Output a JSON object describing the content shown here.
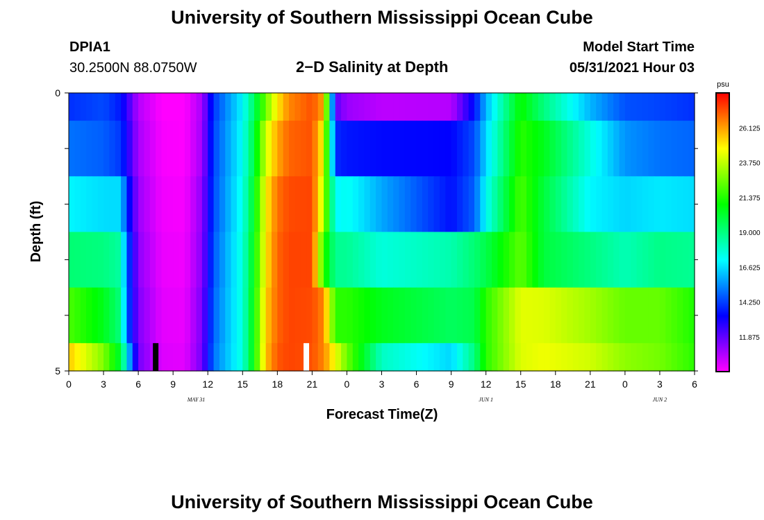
{
  "header": {
    "title": "University of Southern Mississippi Ocean Cube",
    "station": "DPIA1",
    "coords": "30.2500N  88.0750W",
    "subtitle": "2−D Salinity at Depth",
    "model_label": "Model Start Time",
    "model_time": "05/31/2021 Hour 03"
  },
  "footer": {
    "title": "University of Southern Mississippi Ocean Cube"
  },
  "chart_data": {
    "type": "heatmap",
    "title": "2−D Salinity at Depth",
    "xlabel": "Forecast Time(Z)",
    "ylabel": "Depth (ft)",
    "xlim": [
      0,
      54
    ],
    "ylim": [
      0,
      5
    ],
    "x_tick_labels": [
      "0",
      "3",
      "6",
      "9",
      "12",
      "15",
      "18",
      "21",
      "0",
      "3",
      "6",
      "9",
      "12",
      "15",
      "18",
      "21",
      "0",
      "3",
      "6"
    ],
    "y_tick_labels": [
      "0",
      "5"
    ],
    "date_labels": [
      {
        "label": "MAY 31",
        "hour": 11
      },
      {
        "label": "JUN 1",
        "hour": 36
      },
      {
        "label": "JUN 2",
        "hour": 51
      }
    ],
    "colorbar": {
      "unit": "psu",
      "min": 9.5,
      "max": 28.5,
      "tick_labels": [
        "26.125",
        "23.750",
        "21.375",
        "19.000",
        "16.625",
        "14.250",
        "11.875"
      ],
      "tick_values": [
        26.125,
        23.75,
        21.375,
        19.0,
        16.625,
        14.25,
        11.875
      ]
    },
    "depth_levels": [
      "0.0-0.5",
      "0.5-1.5",
      "1.5-2.5",
      "2.5-3.5",
      "3.5-4.5",
      "4.5-5.0"
    ],
    "anchor_hours": [
      0,
      3,
      4.5,
      5,
      6,
      8,
      10,
      11.5,
      12.5,
      15,
      16,
      17,
      18,
      19,
      21,
      22,
      23,
      24,
      27,
      33,
      35,
      36,
      39,
      41,
      45,
      48,
      51,
      54
    ],
    "salinity_rows": [
      [
        14.0,
        14.4,
        13.6,
        12.6,
        10.6,
        9.5,
        9.5,
        10.8,
        14.1,
        17.0,
        19.5,
        22.5,
        25.0,
        26.5,
        27.3,
        26.0,
        12.0,
        11.0,
        10.5,
        10.6,
        13.5,
        16.0,
        21.0,
        19.0,
        16.0,
        14.5,
        14.3,
        14.0
      ],
      [
        15.0,
        14.7,
        14.1,
        13.0,
        10.8,
        9.6,
        9.5,
        10.9,
        14.3,
        17.2,
        20.0,
        24.0,
        26.0,
        27.0,
        27.3,
        24.5,
        13.9,
        13.6,
        13.4,
        13.3,
        14.4,
        16.5,
        21.5,
        20.5,
        17.5,
        15.5,
        15.0,
        14.8
      ],
      [
        17.0,
        16.6,
        16.6,
        14.0,
        11.0,
        9.7,
        9.6,
        11.2,
        14.4,
        17.4,
        20.5,
        24.8,
        26.8,
        27.4,
        27.5,
        23.5,
        17.0,
        17.3,
        15.8,
        13.5,
        14.7,
        17.2,
        22.0,
        20.0,
        17.0,
        16.5,
        16.8,
        16.6
      ],
      [
        19.2,
        19.0,
        18.5,
        14.8,
        11.2,
        9.8,
        9.7,
        11.3,
        14.6,
        17.6,
        20.8,
        25.0,
        27.0,
        27.5,
        27.5,
        21.5,
        18.7,
        18.7,
        17.6,
        18.3,
        19.2,
        19.8,
        22.3,
        20.0,
        19.0,
        18.2,
        18.9,
        18.7
      ],
      [
        22.0,
        20.5,
        19.0,
        14.8,
        11.4,
        9.9,
        9.8,
        11.5,
        14.8,
        17.6,
        21.0,
        25.4,
        27.0,
        27.5,
        27.4,
        26.5,
        21.5,
        21.5,
        20.5,
        19.5,
        19.8,
        21.5,
        24.3,
        24.2,
        23.3,
        22.4,
        22.4,
        21.3
      ],
      [
        25.5,
        22.8,
        20.0,
        17.0,
        11.6,
        10.0,
        9.9,
        11.6,
        15.0,
        17.6,
        21.0,
        25.6,
        27.2,
        27.5,
        27.3,
        26.5,
        24.5,
        22.5,
        18.0,
        16.5,
        19.0,
        21.5,
        24.2,
        24.5,
        24.0,
        23.0,
        22.6,
        21.5
      ]
    ],
    "markers": [
      {
        "name": "black-marker",
        "color": "#000000",
        "hour": 7.5
      },
      {
        "name": "white-marker",
        "color": "#ffffff",
        "hour": 20.5
      }
    ]
  }
}
